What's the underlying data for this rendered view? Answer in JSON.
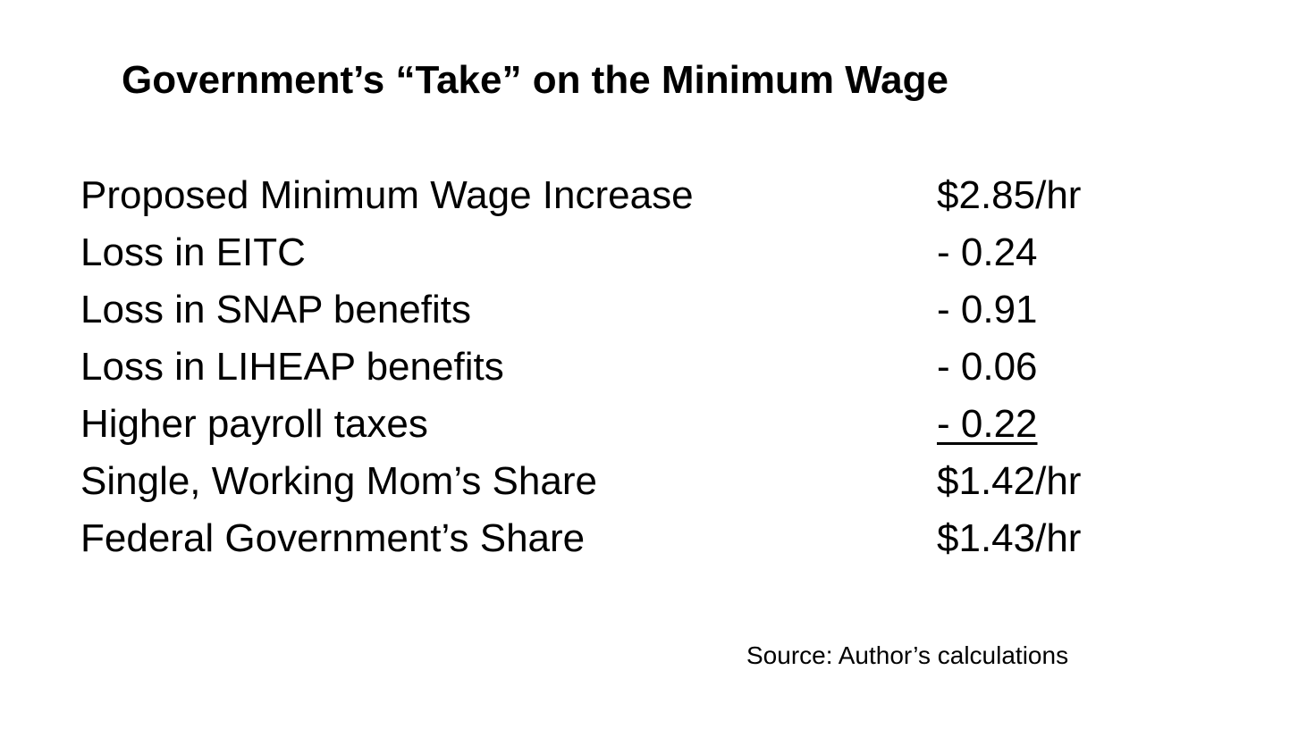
{
  "title": "Government’s “Take” on the Minimum Wage",
  "rows": [
    {
      "label": "Proposed Minimum Wage Increase",
      "value": "$2.85/hr"
    },
    {
      "label": "Loss in EITC",
      "value": "-  0.24"
    },
    {
      "label": "Loss in SNAP benefits",
      "value": "-  0.91"
    },
    {
      "label": "Loss in LIHEAP benefits",
      "value": "-  0.06"
    },
    {
      "label": "Higher payroll taxes",
      "value": "-  0.22"
    },
    {
      "label": "Single, Working Mom’s Share",
      "value": "$1.42/hr"
    },
    {
      "label": "Federal Government’s Share",
      "value": "$1.43/hr"
    }
  ],
  "source": "Source: Author’s calculations"
}
